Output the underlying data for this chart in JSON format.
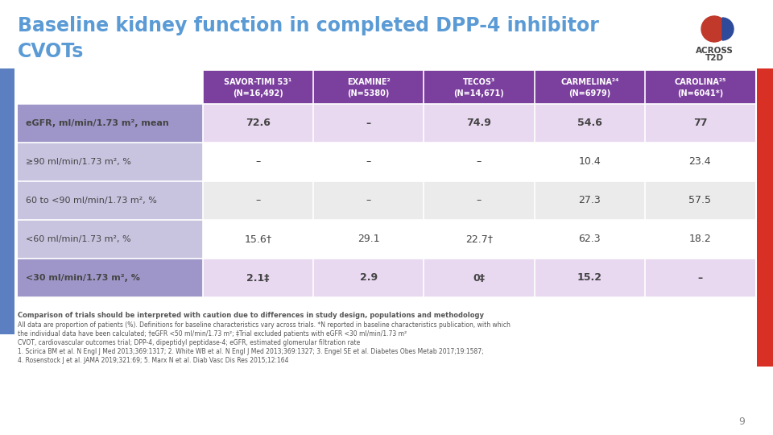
{
  "title_line1": "Baseline kidney function in completed DPP-4 inhibitor",
  "title_line2": "CVOTs",
  "title_color": "#5B9BD5",
  "bg_color": "#FFFFFF",
  "header_bg": "#7B3F9E",
  "col_headers": [
    "SAVOR-TIMI 53¹\n(N=16,492)",
    "EXAMINE²\n(N=5380)",
    "TECOS³\n(N=14,671)",
    "CARMELINA²⁴\n(N=6979)",
    "CAROLINA²⁵\n(N=6041*)"
  ],
  "row_labels": [
    "eGFR, ml/min/1.73 m², mean",
    "≥90 ml/min/1.73 m², %",
    "60 to <90 ml/min/1.73 m², %",
    "<60 ml/min/1.73 m², %",
    "<30 ml/min/1.73 m², %"
  ],
  "row_bold": [
    true,
    false,
    false,
    false,
    true
  ],
  "table_data": [
    [
      "72.6",
      "–",
      "74.9",
      "54.6",
      "77"
    ],
    [
      "–",
      "–",
      "–",
      "10.4",
      "23.4"
    ],
    [
      "–",
      "–",
      "–",
      "27.3",
      "57.5"
    ],
    [
      "15.6†",
      "29.1",
      "22.7†",
      "62.3",
      "18.2"
    ],
    [
      "2.1‡",
      "2.9",
      "0‡",
      "15.2",
      "–"
    ]
  ],
  "left_col_bold_bg": "#9E96C8",
  "left_col_normal_bg": "#C8C4E0",
  "data_bold_bg": "#E8D8F0",
  "data_row1_bg": "#FFFFFF",
  "data_row2_bg": "#EBEBEB",
  "footnote_bold": "Comparison of trials should be interpreted with caution due to differences in study design, populations and methodology",
  "footnote_lines": [
    "All data are proportion of patients (%). Definitions for baseline characteristics vary across trials. *N reported in baseline characteristics publication, with which",
    "the individual data have been calculated; †eGFR <50 ml/min/1.73 m²; ‡Trial excluded patients with eGFR <30 ml/min/1.73 m²",
    "CVOT, cardiovascular outcomes trial; DPP-4, dipeptidyl peptidase-4; eGFR, estimated glomerular filtration rate",
    "1. Scirica BM et al. N Engl J Med 2013;369:1317; 2. White WB et al. N Engl J Med 2013;369:1327; 3. Engel SE et al. Diabetes Obes Metab 2017;19:1587;",
    "4. Rosenstock J et al. JAMA 2019;321:69; 5. Marx N et al. Diab Vasc Dis Res 2015;12:164"
  ],
  "page_number": "9",
  "left_bar_color": "#5B7FC0",
  "red_bar_color": "#D93025"
}
